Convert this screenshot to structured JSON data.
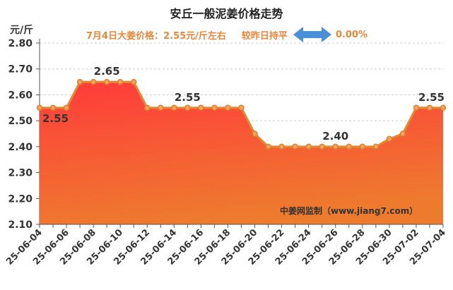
{
  "header": {
    "title": "安丘一般泥姜价格走势",
    "unit": "元/斤",
    "price_text": "7月4日大姜价格：2.55元/斤左右",
    "trend_text": "较昨日持平",
    "change_text": "0.00%",
    "trend_icon": "left-right-arrow-icon"
  },
  "watermark": "中姜网监制（www.jiang7.com）",
  "colors": {
    "title": "#222222",
    "accent": "#e8863a",
    "line": "#e08a35",
    "fill_top": "#ff3b3b",
    "fill_bottom": "#ee7a2e",
    "arrow": "#4a90d9"
  },
  "chart_data": {
    "type": "area",
    "title": "安丘一般泥姜价格走势",
    "ylabel": "元/斤",
    "xlabel": "",
    "ylim": [
      2.1,
      2.8
    ],
    "yticks": [
      "2.10",
      "2.20",
      "2.30",
      "2.40",
      "2.50",
      "2.60",
      "2.70",
      "2.80"
    ],
    "grid": true,
    "x": [
      "25-06-04",
      "25-06-05",
      "25-06-06",
      "25-06-07",
      "25-06-08",
      "25-06-09",
      "25-06-10",
      "25-06-11",
      "25-06-12",
      "25-06-13",
      "25-06-14",
      "25-06-15",
      "25-06-16",
      "25-06-17",
      "25-06-18",
      "25-06-19",
      "25-06-20",
      "25-06-21",
      "25-06-22",
      "25-06-23",
      "25-06-24",
      "25-06-25",
      "25-06-26",
      "25-06-27",
      "25-06-28",
      "25-06-29",
      "25-06-30",
      "25-07-01",
      "25-07-02",
      "25-07-03",
      "25-07-04"
    ],
    "xtick_labels": [
      "25-06-04",
      "25-06-06",
      "25-06-08",
      "25-06-10",
      "25-06-12",
      "25-06-14",
      "25-06-16",
      "25-06-18",
      "25-06-20",
      "25-06-22",
      "25-06-24",
      "25-06-26",
      "25-06-28",
      "25-06-30",
      "25-07-02",
      "25-07-04"
    ],
    "values": [
      2.55,
      2.55,
      2.55,
      2.65,
      2.65,
      2.65,
      2.65,
      2.65,
      2.55,
      2.55,
      2.55,
      2.55,
      2.55,
      2.55,
      2.55,
      2.55,
      2.45,
      2.4,
      2.4,
      2.4,
      2.4,
      2.4,
      2.4,
      2.4,
      2.4,
      2.4,
      2.43,
      2.45,
      2.55,
      2.55,
      2.55
    ],
    "data_labels": [
      {
        "index": 0,
        "text": "2.55"
      },
      {
        "index": 5,
        "text": "2.65"
      },
      {
        "index": 11,
        "text": "2.55"
      },
      {
        "index": 22,
        "text": "2.40"
      },
      {
        "index": 30,
        "text": "2.55"
      }
    ]
  }
}
